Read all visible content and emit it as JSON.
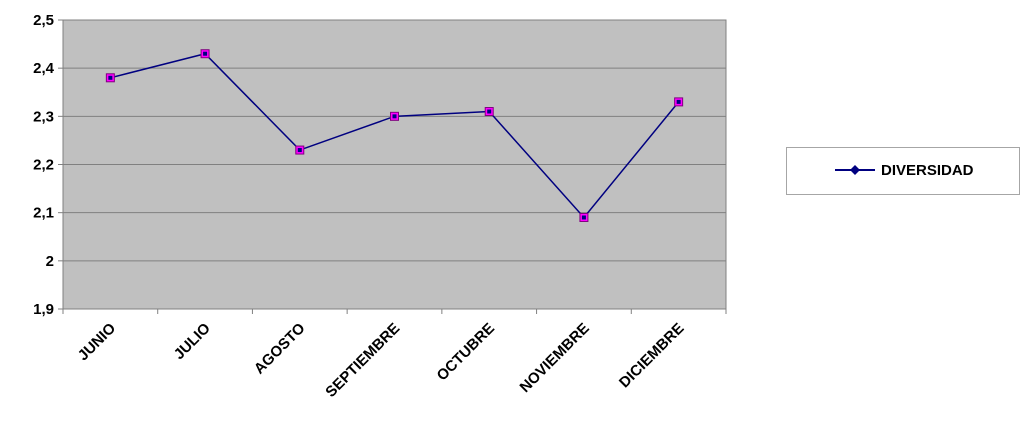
{
  "chart_data": {
    "type": "line",
    "title": "",
    "xlabel": "",
    "ylabel": "",
    "categories": [
      "JUNIO",
      "JULIO",
      "AGOSTO",
      "SEPTIEMBRE",
      "OCTUBRE",
      "NOVIEMBRE",
      "DICIEMBRE"
    ],
    "series": [
      {
        "name": "DIVERSIDAD",
        "values": [
          2.38,
          2.43,
          2.23,
          2.3,
          2.31,
          2.09,
          2.33
        ],
        "line_color": "#000080",
        "marker_color": "#ff00ff"
      }
    ],
    "ylim": [
      1.9,
      2.5
    ],
    "yticks": [
      "1,9",
      "2",
      "2,1",
      "2,2",
      "2,3",
      "2,4",
      "2,5"
    ],
    "grid": true,
    "plot_background": "#c0c0c0",
    "legend_position": "right"
  }
}
